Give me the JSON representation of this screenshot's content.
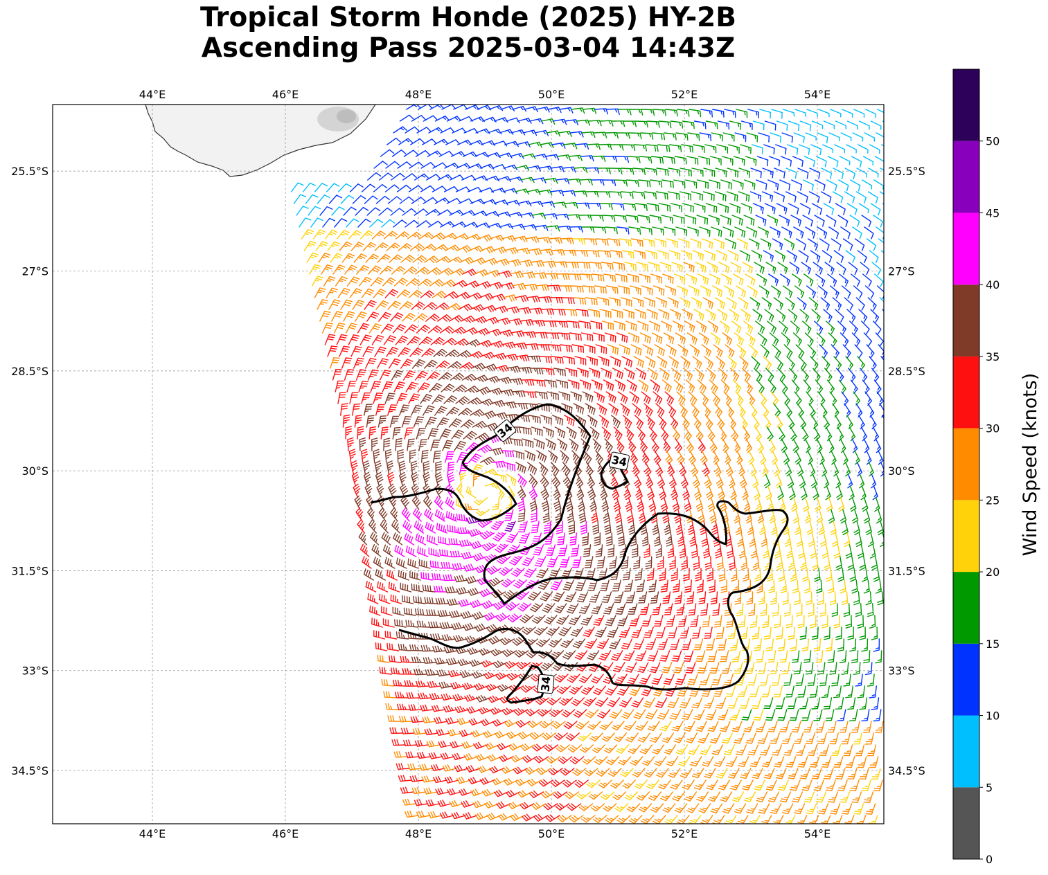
{
  "title": {
    "line1": "Tropical Storm Honde (2025) HY-2B",
    "line2": "Ascending Pass 2025-03-04 14:43Z"
  },
  "map": {
    "lon_range": [
      42.5,
      55.0
    ],
    "lat_range": [
      -35.3,
      -24.5
    ],
    "lon_ticks": [
      {
        "value": 44,
        "label": "44°E"
      },
      {
        "value": 46,
        "label": "46°E"
      },
      {
        "value": 48,
        "label": "48°E"
      },
      {
        "value": 50,
        "label": "50°E"
      },
      {
        "value": 52,
        "label": "52°E"
      },
      {
        "value": 54,
        "label": "54°E"
      }
    ],
    "lat_ticks": [
      {
        "value": -25.5,
        "label": "25.5°S"
      },
      {
        "value": -27,
        "label": "27°S"
      },
      {
        "value": -28.5,
        "label": "28.5°S"
      },
      {
        "value": -30,
        "label": "30°S"
      },
      {
        "value": -31.5,
        "label": "31.5°S"
      },
      {
        "value": -33,
        "label": "33°S"
      },
      {
        "value": -34.5,
        "label": "34.5°S"
      }
    ],
    "grid": true,
    "land": "Madagascar (southern tip)",
    "storm_center": {
      "lon": 49.0,
      "lat": -30.3
    },
    "contour_level": "34",
    "contour_labels": [
      "34",
      "34",
      "34"
    ]
  },
  "colorbar": {
    "label": "Wind Speed (knots)",
    "tick_labels": [
      "0",
      "5",
      "10",
      "15",
      "20",
      "25",
      "30",
      "35",
      "40",
      "45",
      "50"
    ],
    "bins": [
      {
        "min": 0,
        "max": 5,
        "color": "#555555"
      },
      {
        "min": 5,
        "max": 10,
        "color": "#00bfff"
      },
      {
        "min": 10,
        "max": 15,
        "color": "#0033ff"
      },
      {
        "min": 15,
        "max": 20,
        "color": "#009900"
      },
      {
        "min": 20,
        "max": 25,
        "color": "#ffd20a"
      },
      {
        "min": 25,
        "max": 30,
        "color": "#ff8c00"
      },
      {
        "min": 30,
        "max": 35,
        "color": "#ff1010"
      },
      {
        "min": 35,
        "max": 40,
        "color": "#7f3a28"
      },
      {
        "min": 40,
        "max": 45,
        "color": "#ff00ff"
      },
      {
        "min": 45,
        "max": 50,
        "color": "#8800bb"
      },
      {
        "min": 50,
        "max": 55,
        "color": "#2d0059"
      }
    ]
  }
}
